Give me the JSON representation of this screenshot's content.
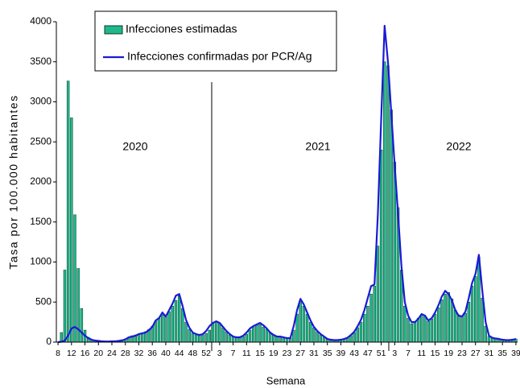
{
  "chart_data": {
    "type": "bar-line",
    "y_label": "Tasa por 100.000 habitantes",
    "x_label": "Semana",
    "annotations": [
      "2020",
      "2021",
      "2022"
    ],
    "ylim": [
      0,
      4000
    ],
    "yticks": [
      0,
      500,
      1000,
      1500,
      2000,
      2500,
      3000,
      3500,
      4000
    ],
    "categories": [
      "8",
      null,
      null,
      null,
      "12",
      null,
      null,
      null,
      "16",
      null,
      null,
      null,
      "20",
      null,
      null,
      null,
      "24",
      null,
      null,
      null,
      "28",
      null,
      null,
      null,
      "32",
      null,
      null,
      null,
      "36",
      null,
      null,
      null,
      "40",
      null,
      null,
      null,
      "44",
      null,
      null,
      null,
      "48",
      null,
      null,
      null,
      "52",
      null,
      null,
      null,
      "3",
      null,
      null,
      null,
      "7",
      null,
      null,
      null,
      "11",
      null,
      null,
      null,
      "15",
      null,
      null,
      null,
      "19",
      null,
      null,
      null,
      "23",
      null,
      null,
      null,
      "27",
      null,
      null,
      null,
      "31",
      null,
      null,
      null,
      "35",
      null,
      null,
      null,
      "39",
      null,
      null,
      null,
      "43",
      null,
      null,
      null,
      "47",
      null,
      null,
      null,
      "51",
      null,
      null,
      null,
      "3",
      null,
      null,
      null,
      "7",
      null,
      null,
      null,
      "11",
      null,
      null,
      null,
      "15",
      null,
      null,
      null,
      "19",
      null,
      null,
      null,
      "23",
      null,
      null,
      null,
      "27",
      null,
      null,
      null,
      "31",
      null,
      null,
      null,
      "35",
      null,
      null,
      null,
      "39"
    ],
    "series": [
      {
        "name": "Infecciones estimadas",
        "type": "bar",
        "color": "#1fb88a",
        "values": [
          0,
          120,
          900,
          3260,
          2800,
          1590,
          920,
          420,
          150,
          60,
          30,
          20,
          15,
          10,
          10,
          10,
          10,
          15,
          20,
          30,
          40,
          60,
          80,
          90,
          100,
          110,
          130,
          160,
          200,
          260,
          300,
          340,
          320,
          380,
          450,
          520,
          580,
          420,
          250,
          160,
          110,
          90,
          80,
          90,
          110,
          150,
          230,
          250,
          230,
          180,
          130,
          90,
          70,
          60,
          60,
          70,
          100,
          150,
          190,
          210,
          220,
          190,
          160,
          120,
          90,
          70,
          60,
          60,
          50,
          50,
          150,
          350,
          520,
          450,
          350,
          250,
          180,
          130,
          90,
          60,
          40,
          30,
          25,
          25,
          30,
          40,
          50,
          80,
          120,
          180,
          250,
          350,
          450,
          600,
          700,
          1200,
          2400,
          3500,
          3450,
          2900,
          2250,
          1680,
          900,
          450,
          300,
          230,
          250,
          300,
          340,
          320,
          260,
          290,
          350,
          430,
          530,
          600,
          620,
          540,
          400,
          340,
          330,
          360,
          500,
          700,
          820,
          1060,
          550,
          200,
          70,
          50,
          40,
          35,
          30,
          25,
          30,
          35,
          40
        ]
      },
      {
        "name": "Infecciones confirmadas por PCR/Ag",
        "type": "line",
        "color": "#1a1ad6",
        "values": [
          0,
          5,
          20,
          80,
          170,
          190,
          160,
          120,
          80,
          50,
          30,
          20,
          15,
          10,
          8,
          8,
          10,
          10,
          15,
          20,
          35,
          60,
          70,
          80,
          100,
          110,
          120,
          150,
          190,
          270,
          300,
          370,
          320,
          400,
          480,
          580,
          600,
          450,
          280,
          180,
          120,
          100,
          90,
          100,
          140,
          200,
          240,
          260,
          240,
          190,
          140,
          100,
          70,
          60,
          60,
          80,
          120,
          170,
          200,
          220,
          240,
          210,
          170,
          120,
          90,
          70,
          70,
          60,
          50,
          50,
          200,
          400,
          540,
          470,
          370,
          270,
          190,
          140,
          100,
          70,
          40,
          30,
          25,
          25,
          30,
          40,
          55,
          90,
          130,
          200,
          280,
          400,
          550,
          700,
          720,
          1600,
          2800,
          3950,
          3500,
          2850,
          2200,
          1600,
          950,
          500,
          330,
          250,
          250,
          290,
          350,
          330,
          270,
          300,
          370,
          460,
          570,
          640,
          600,
          520,
          400,
          330,
          320,
          380,
          550,
          740,
          850,
          1090,
          650,
          250,
          80,
          55,
          45,
          40,
          30,
          25,
          25,
          30,
          40
        ]
      }
    ]
  }
}
